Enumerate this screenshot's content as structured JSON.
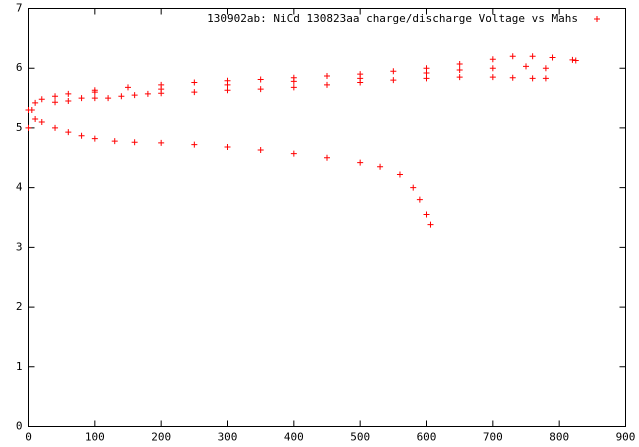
{
  "chart_data": {
    "type": "scatter",
    "xlim": [
      0,
      900
    ],
    "xticks": [
      0,
      100,
      200,
      300,
      400,
      500,
      600,
      700,
      800,
      900
    ],
    "ylim": [
      0,
      7
    ],
    "yticks": [
      0,
      1,
      2,
      3,
      4,
      5,
      6,
      7
    ],
    "legend": "top-right",
    "series": [
      {
        "name": "130902ab: NiCd 130823aa charge/discharge Voltage vs Mahs",
        "color": "#ff0000",
        "x": [
          0,
          10,
          20,
          40,
          60,
          80,
          100,
          130,
          160,
          200,
          250,
          300,
          350,
          400,
          450,
          500,
          530,
          560,
          580,
          590,
          600,
          606,
          0,
          5,
          10,
          20,
          40,
          60,
          100,
          150,
          200,
          250,
          300,
          350,
          400,
          450,
          500,
          550,
          600,
          650,
          700,
          730,
          760,
          790,
          820,
          825,
          40,
          60,
          80,
          100,
          120,
          140,
          160,
          180,
          200,
          250,
          300,
          350,
          400,
          450,
          500,
          550,
          600,
          650,
          700,
          730,
          760,
          780,
          100,
          200,
          300,
          400,
          500,
          600,
          650,
          700,
          750,
          780
        ],
        "values": [
          5.3,
          5.15,
          5.1,
          5.0,
          4.93,
          4.87,
          4.82,
          4.78,
          4.76,
          4.75,
          4.72,
          4.68,
          4.63,
          4.57,
          4.5,
          4.42,
          4.35,
          4.22,
          4.0,
          3.8,
          3.55,
          3.38,
          5.0,
          5.3,
          5.42,
          5.48,
          5.53,
          5.57,
          5.63,
          5.68,
          5.72,
          5.76,
          5.79,
          5.81,
          5.84,
          5.87,
          5.9,
          5.95,
          6.0,
          6.07,
          6.15,
          6.2,
          6.2,
          6.18,
          6.14,
          6.13,
          5.43,
          5.45,
          5.5,
          5.5,
          5.5,
          5.53,
          5.55,
          5.57,
          5.58,
          5.6,
          5.63,
          5.65,
          5.68,
          5.72,
          5.76,
          5.8,
          5.83,
          5.85,
          5.85,
          5.84,
          5.83,
          5.83,
          5.6,
          5.65,
          5.72,
          5.78,
          5.83,
          5.92,
          5.97,
          6.0,
          6.03,
          6.0
        ]
      }
    ]
  }
}
